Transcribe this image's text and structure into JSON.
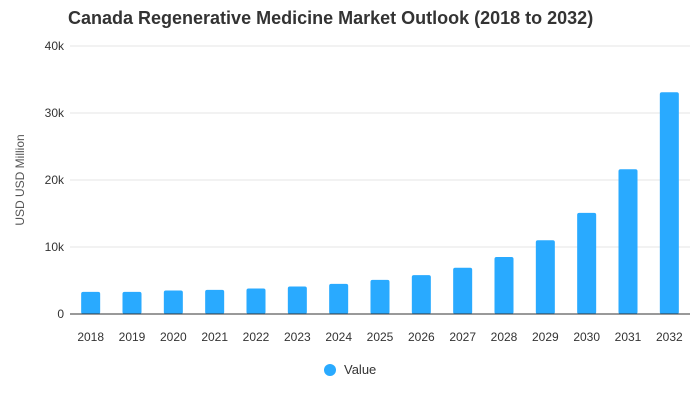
{
  "colors": {
    "bar": "#29aaff",
    "grid": "#e6e6e6",
    "axis": "#333333"
  },
  "chart_data": {
    "type": "bar",
    "title": "Canada Regenerative Medicine Market Outlook (2018 to 2032)",
    "xlabel": "",
    "ylabel": "USD USD Million",
    "ylim": [
      0,
      40000
    ],
    "yticks": [
      0,
      10000,
      20000,
      30000,
      40000
    ],
    "ytick_labels": [
      "0",
      "10k",
      "20k",
      "30k",
      "40k"
    ],
    "categories": [
      "2018",
      "2019",
      "2020",
      "2021",
      "2022",
      "2023",
      "2024",
      "2025",
      "2026",
      "2027",
      "2028",
      "2029",
      "2030",
      "2031",
      "2032"
    ],
    "series": [
      {
        "name": "Value",
        "values": [
          3300,
          3300,
          3500,
          3600,
          3800,
          4100,
          4500,
          5100,
          5800,
          6900,
          8500,
          11000,
          15100,
          21600,
          33100
        ]
      }
    ],
    "legend": "bottom-center"
  }
}
